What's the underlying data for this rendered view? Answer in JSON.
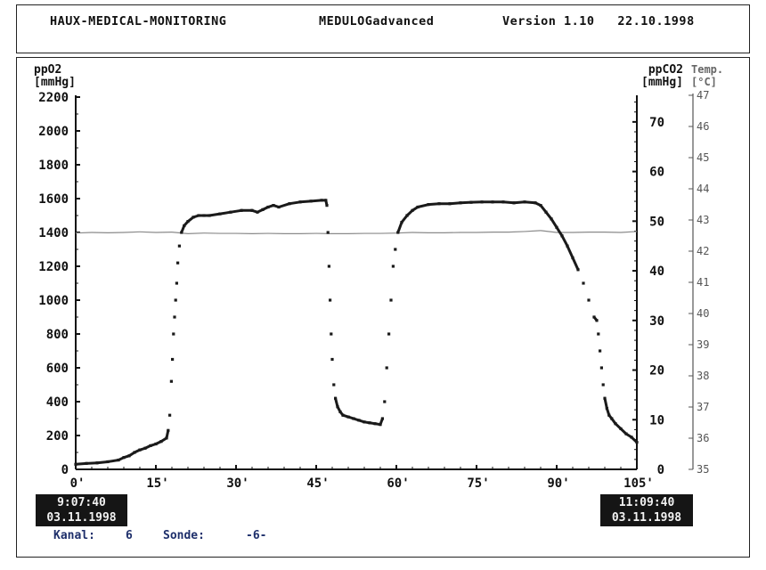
{
  "header": {
    "left": "HAUX-MEDICAL-MONITORING",
    "center": "MEDULOGadvanced",
    "right": "Version 1.10   22.10.1998"
  },
  "start": {
    "time": "9:07:40",
    "date": "03.11.1998"
  },
  "end": {
    "time": "11:09:40",
    "date": "03.11.1998"
  },
  "footer": {
    "kanal_label": "Kanal:",
    "kanal_value": "6",
    "sonde_label": "Sonde:",
    "sonde_value": "-6-"
  },
  "colors": {
    "data": "#1a1a1a",
    "temp": "#8a8a8a",
    "footer_text": "#1e2f6b",
    "time_box": "#151515"
  },
  "chart_data": {
    "type": "scatter",
    "grid": false,
    "x_ticks": [
      "0'",
      "15'",
      "30'",
      "45'",
      "60'",
      "75'",
      "90'",
      "105'"
    ],
    "x_tick_values": [
      0,
      15,
      30,
      45,
      60,
      75,
      90,
      105
    ],
    "xlim": [
      0,
      105
    ],
    "left_axis": {
      "label_line1": "ppO2",
      "label_line2": "[mmHg]",
      "ylim": [
        0,
        2200
      ],
      "ticks": [
        0,
        200,
        400,
        600,
        800,
        1000,
        1200,
        1400,
        1600,
        1800,
        2000,
        2200
      ]
    },
    "right_axis": {
      "label_line1": "ppCO2",
      "label_line2": "[mmHg]",
      "ylim": [
        0,
        75
      ],
      "ticks": [
        0,
        10,
        20,
        30,
        40,
        50,
        60,
        70
      ]
    },
    "temp_axis": {
      "label_line1": "Temp.",
      "label_line2": "[°C]",
      "ylim": [
        35,
        47
      ],
      "ticks": [
        35,
        36,
        37,
        38,
        39,
        40,
        41,
        42,
        43,
        44,
        45,
        46,
        47
      ]
    },
    "series": [
      {
        "role": "ppO2",
        "axis": "left",
        "style": "points",
        "x": [
          0.0,
          2.0,
          4.0,
          6.0,
          8.0,
          9.0,
          10.0,
          11.0,
          12.0,
          13.0,
          14.0,
          15.0,
          16.0,
          17.0,
          17.3,
          17.6,
          17.9,
          18.1,
          18.3,
          18.5,
          18.7,
          18.9,
          19.1,
          19.4,
          19.8,
          20.3,
          21.0,
          22.0,
          23.0,
          24.0,
          25.0,
          27.0,
          29.0,
          31.0,
          33.0,
          34.0,
          35.0,
          36.0,
          37.0,
          38.0,
          40.0,
          42.0,
          44.0,
          46.0,
          46.8,
          47.0,
          47.2,
          47.4,
          47.6,
          47.8,
          48.0,
          48.3,
          48.6,
          49.0,
          49.5,
          50.0,
          51.0,
          52.0,
          53.0,
          54.0,
          55.0,
          56.0,
          57.0,
          57.4,
          57.8,
          58.2,
          58.6,
          59.0,
          59.4,
          59.8,
          60.3,
          61.0,
          62.0,
          63.0,
          64.0,
          66.0,
          68.0,
          70.0,
          72.0,
          74.0,
          76.0,
          78.0,
          80.0,
          82.0,
          84.0,
          86.0,
          87.0,
          88.0,
          89.0,
          90.0,
          91.0,
          92.0,
          93.0,
          94.0,
          95.0,
          96.0,
          97.0,
          97.5,
          97.8,
          98.1,
          98.4,
          98.7,
          99.0,
          99.4,
          99.8,
          100.3,
          101.0,
          102.0,
          103.0,
          104.0,
          105.0
        ],
        "y": [
          30,
          35,
          38,
          45,
          55,
          70,
          80,
          100,
          115,
          125,
          140,
          150,
          165,
          185,
          230,
          320,
          520,
          650,
          800,
          900,
          1000,
          1100,
          1220,
          1320,
          1400,
          1440,
          1465,
          1490,
          1500,
          1500,
          1500,
          1510,
          1520,
          1530,
          1530,
          1520,
          1535,
          1550,
          1560,
          1550,
          1570,
          1580,
          1585,
          1590,
          1590,
          1560,
          1400,
          1200,
          1000,
          800,
          650,
          500,
          420,
          370,
          340,
          320,
          310,
          300,
          290,
          280,
          275,
          270,
          265,
          300,
          400,
          600,
          800,
          1000,
          1200,
          1300,
          1400,
          1460,
          1500,
          1530,
          1550,
          1565,
          1570,
          1570,
          1575,
          1578,
          1580,
          1580,
          1580,
          1575,
          1580,
          1575,
          1560,
          1520,
          1480,
          1430,
          1380,
          1320,
          1250,
          1180,
          1100,
          1000,
          900,
          880,
          800,
          700,
          600,
          500,
          420,
          360,
          320,
          300,
          270,
          240,
          210,
          190,
          160
        ]
      },
      {
        "role": "temperature",
        "axis": "temp",
        "style": "line",
        "x": [
          0,
          3,
          6,
          9,
          12,
          15,
          18,
          21,
          24,
          27,
          30,
          33,
          36,
          39,
          42,
          45,
          48,
          51,
          54,
          57,
          60,
          63,
          66,
          69,
          72,
          75,
          78,
          81,
          84,
          87,
          90,
          93,
          96,
          99,
          102,
          105
        ],
        "y": [
          42.58,
          42.6,
          42.59,
          42.6,
          42.62,
          42.6,
          42.61,
          42.56,
          42.58,
          42.57,
          42.57,
          42.56,
          42.57,
          42.56,
          42.56,
          42.57,
          42.56,
          42.56,
          42.57,
          42.57,
          42.58,
          42.6,
          42.59,
          42.59,
          42.6,
          42.6,
          42.61,
          42.61,
          42.63,
          42.66,
          42.6,
          42.6,
          42.61,
          42.61,
          42.6,
          42.63
        ]
      }
    ]
  }
}
